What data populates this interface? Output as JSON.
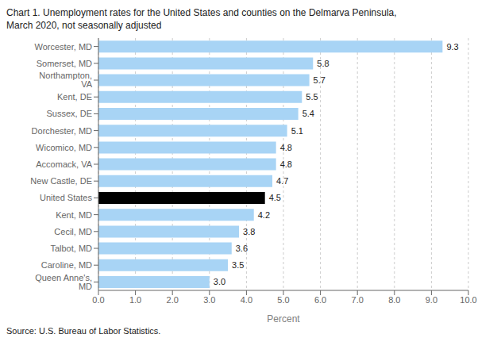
{
  "chart_data": {
    "type": "bar",
    "title": "Chart 1. Unemployment rates for the United States and counties on the Delmarva Peninsula,",
    "subtitle": "March 2020, not seasonally adjusted",
    "orientation": "horizontal",
    "categories": [
      "Worcester, MD",
      "Somerset, MD",
      "Northampton, VA",
      "Kent, DE",
      "Sussex, DE",
      "Dorchester, MD",
      "Wicomico, MD",
      "Accomack, VA",
      "New Castle, DE",
      "United States",
      "Kent, MD",
      "Cecil, MD",
      "Talbot, MD",
      "Caroline, MD",
      "Queen Anne's, MD"
    ],
    "values": [
      9.3,
      5.8,
      5.7,
      5.5,
      5.4,
      5.1,
      4.8,
      4.8,
      4.7,
      4.5,
      4.2,
      3.8,
      3.6,
      3.5,
      3.0
    ],
    "value_labels": [
      "9.3",
      "5.8",
      "5.7",
      "5.5",
      "5.4",
      "5.1",
      "4.8",
      "4.8",
      "4.7",
      "4.5",
      "4.2",
      "3.8",
      "3.6",
      "3.5",
      "3.0"
    ],
    "colors": [
      "#a8d4f5",
      "#a8d4f5",
      "#a8d4f5",
      "#a8d4f5",
      "#a8d4f5",
      "#a8d4f5",
      "#a8d4f5",
      "#a8d4f5",
      "#a8d4f5",
      "#000000",
      "#a8d4f5",
      "#a8d4f5",
      "#a8d4f5",
      "#a8d4f5",
      "#a8d4f5"
    ],
    "data_labels": true,
    "xlabel": "Percent",
    "xlim": [
      0,
      10.0
    ],
    "xticks": [
      {
        "value": 0,
        "label": "0.0"
      },
      {
        "value": 1,
        "label": "1.0"
      },
      {
        "value": 2,
        "label": "2.0"
      },
      {
        "value": 3,
        "label": "3.0"
      },
      {
        "value": 4,
        "label": "4.0"
      },
      {
        "value": 5,
        "label": "5.0"
      },
      {
        "value": 6,
        "label": "6.0"
      },
      {
        "value": 7,
        "label": "7.0"
      },
      {
        "value": 8,
        "label": "8.0"
      },
      {
        "value": 9,
        "label": "9.0"
      },
      {
        "value": 10,
        "label": "10.0"
      }
    ],
    "grid": true,
    "annotations": [
      "Source: U.S. Bureau of Labor Statistics."
    ]
  }
}
